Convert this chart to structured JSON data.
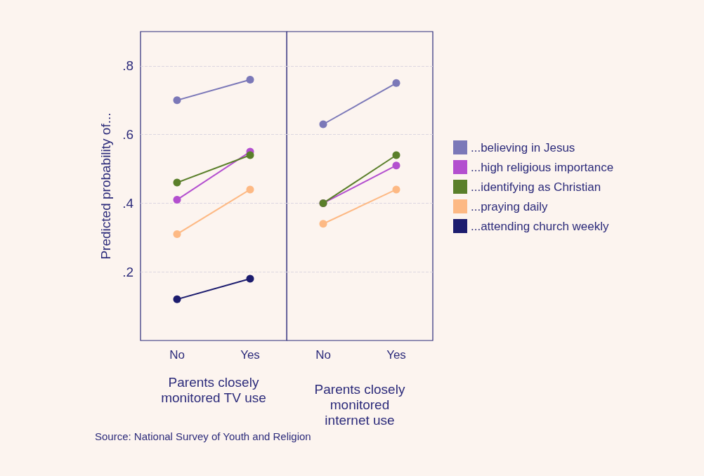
{
  "chart_data": [
    {
      "type": "line",
      "ylabel": "Predicted probability of...",
      "xlabel": "Parents closely\nmonitored TV use",
      "categories": [
        "No",
        "Yes"
      ],
      "ylim": [
        0,
        0.9
      ],
      "yticks": [
        {
          "value": 0.2,
          "label": ".2"
        },
        {
          "value": 0.4,
          "label": ".4"
        },
        {
          "value": 0.6,
          "label": ".6"
        },
        {
          "value": 0.8,
          "label": ".8"
        }
      ],
      "grid": "y",
      "marker": "circle",
      "annotations": [
        "Source: National Survey of Youth and Religion"
      ],
      "series": [
        {
          "color": "#7b78b8",
          "values": [
            0.7,
            0.76
          ]
        },
        {
          "color": "#b34fcf",
          "values": [
            0.41,
            0.55
          ]
        },
        {
          "color": "#5a7f2a",
          "values": [
            0.46,
            0.54
          ]
        },
        {
          "color": "#fdb984",
          "values": [
            0.31,
            0.44
          ]
        },
        {
          "color": "#1c1c6e",
          "values": [
            0.12,
            0.18
          ]
        }
      ]
    },
    {
      "type": "line",
      "xlabel": "Parents closely\nmonitored\ninternet use",
      "categories": [
        "No",
        "Yes"
      ],
      "ylim": [
        0,
        0.9
      ],
      "yticks": [
        {
          "value": 0.2,
          "label": null
        },
        {
          "value": 0.4,
          "label": null
        },
        {
          "value": 0.6,
          "label": null
        },
        {
          "value": 0.8,
          "label": null
        }
      ],
      "tick_labels": "x",
      "grid": "y",
      "marker": "circle",
      "legend": "right",
      "series": [
        {
          "name": "...believing in Jesus",
          "color": "#7b78b8",
          "values": [
            0.63,
            0.75
          ]
        },
        {
          "name": "...high religious importance",
          "color": "#b34fcf",
          "values": [
            0.4,
            0.51
          ]
        },
        {
          "name": "...identifying as Christian",
          "color": "#5a7f2a",
          "values": [
            0.4,
            0.54
          ]
        },
        {
          "name": "...praying daily",
          "color": "#fdb984",
          "values": [
            0.34,
            0.44
          ]
        },
        {
          "name": "...attending church weekly",
          "color": "#1c1c6e",
          "values": [
            null,
            null
          ]
        }
      ]
    }
  ]
}
